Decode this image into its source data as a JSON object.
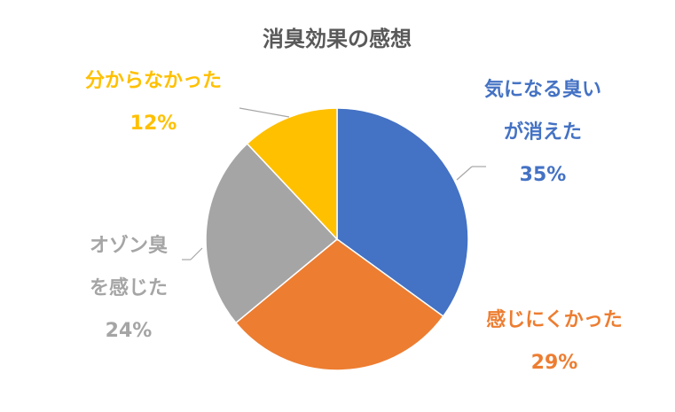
{
  "chart_data": {
    "type": "pie",
    "title": "消臭効果の感想",
    "categories": [
      "気になる臭いが消えた",
      "感じにくかった",
      "オゾン臭を感じた",
      "分からなかった"
    ],
    "values": [
      35,
      29,
      24,
      12
    ],
    "value_labels": [
      "35%",
      "29%",
      "24%",
      "12%"
    ],
    "colors": [
      "#4472c4",
      "#ed7d31",
      "#a5a5a5",
      "#ffc000"
    ]
  }
}
